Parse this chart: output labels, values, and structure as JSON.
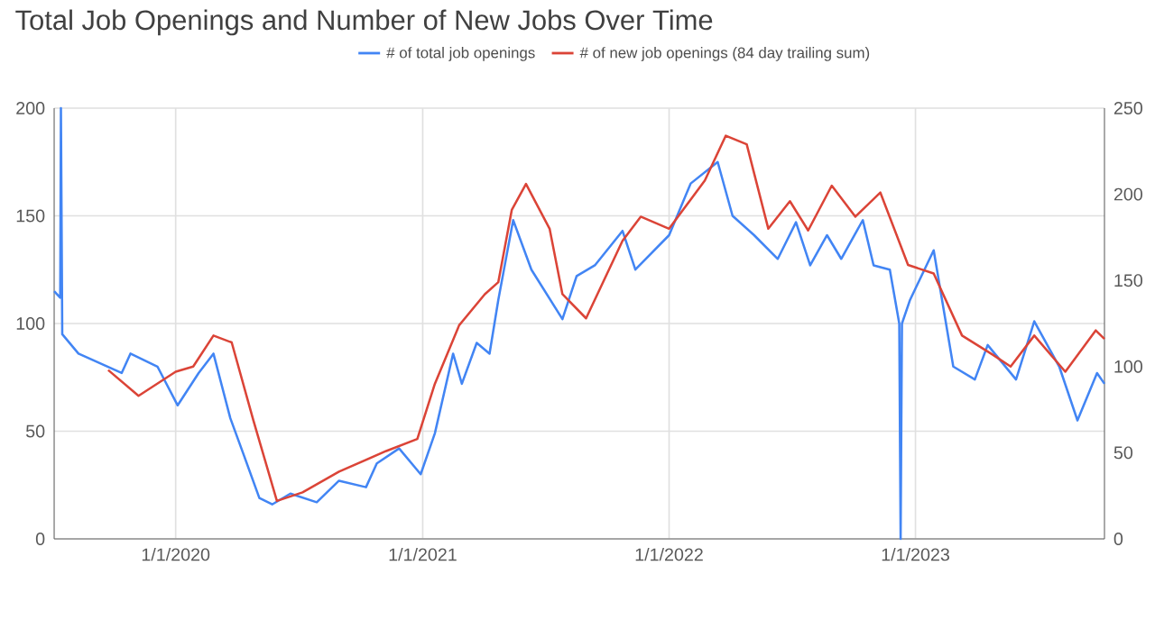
{
  "chart_data": {
    "type": "line",
    "title": "Total Job Openings and Number of New Jobs Over Time",
    "xlim": [
      "2019-07-05",
      "2023-10-08"
    ],
    "xticks": [
      {
        "value": "2020-01-01",
        "label": "1/1/2020"
      },
      {
        "value": "2021-01-01",
        "label": "1/1/2021"
      },
      {
        "value": "2022-01-01",
        "label": "1/1/2022"
      },
      {
        "value": "2023-01-01",
        "label": "1/1/2023"
      }
    ],
    "ylim": [
      0,
      200
    ],
    "yticks": [
      0,
      50,
      100,
      150,
      200
    ],
    "y2lim": [
      0,
      250
    ],
    "y2ticks": [
      0,
      50,
      100,
      150,
      200,
      250
    ],
    "grid": true,
    "legend": "top",
    "marker": "none",
    "line_style": "solid",
    "series": [
      {
        "name": "# of total job openings",
        "color": "#4285f4",
        "x": [
          "2019-07-05",
          "2019-07-14",
          "2019-07-15",
          "2019-07-17",
          "2019-08-10",
          "2019-10-13",
          "2019-10-26",
          "2019-12-05",
          "2020-01-04",
          "2020-02-04",
          "2020-02-26",
          "2020-03-22",
          "2020-04-12",
          "2020-05-04",
          "2020-05-23",
          "2020-06-19",
          "2020-07-28",
          "2020-08-30",
          "2020-10-09",
          "2020-10-25",
          "2020-11-27",
          "2020-12-29",
          "2021-01-19",
          "2021-02-15",
          "2021-02-28",
          "2021-03-22",
          "2021-04-10",
          "2021-04-23",
          "2021-05-15",
          "2021-06-11",
          "2021-07-27",
          "2021-08-17",
          "2021-09-13",
          "2021-10-24",
          "2021-11-12",
          "2022-01-01",
          "2022-02-02",
          "2022-03-14",
          "2022-04-05",
          "2022-05-07",
          "2022-06-11",
          "2022-07-08",
          "2022-07-29",
          "2022-08-23",
          "2022-09-13",
          "2022-10-15",
          "2022-10-31",
          "2022-11-24",
          "2022-12-08",
          "2022-12-10",
          "2022-12-12",
          "2022-12-24",
          "2023-01-28",
          "2023-02-26",
          "2023-03-30",
          "2023-04-18",
          "2023-05-30",
          "2023-06-26",
          "2023-08-02",
          "2023-08-29",
          "2023-09-27",
          "2023-10-08"
        ],
        "values": [
          115,
          112,
          200,
          95,
          86,
          77,
          86,
          80,
          62,
          77,
          86,
          56,
          38,
          19,
          16,
          21,
          17,
          27,
          24,
          35,
          42,
          30,
          49,
          86,
          72,
          91,
          86,
          111,
          148,
          125,
          102,
          122,
          127,
          143,
          125,
          141,
          165,
          175,
          150,
          141,
          130,
          147,
          127,
          141,
          130,
          148,
          127,
          125,
          100,
          0,
          100,
          111,
          134,
          80,
          74,
          90,
          74,
          101,
          80,
          55,
          77,
          72
        ]
      },
      {
        "name": "# of new job openings (84 day trailing sum)",
        "color": "#db4437",
        "axis": "y2",
        "x": [
          "2019-09-23",
          "2019-11-07",
          "2020-01-01",
          "2020-01-27",
          "2020-02-26",
          "2020-03-24",
          "2020-04-25",
          "2020-05-30",
          "2020-07-07",
          "2020-08-30",
          "2020-11-08",
          "2020-12-24",
          "2021-01-19",
          "2021-02-24",
          "2021-04-03",
          "2021-04-23",
          "2021-05-13",
          "2021-06-03",
          "2021-07-08",
          "2021-07-27",
          "2021-08-31",
          "2021-10-24",
          "2021-11-20",
          "2022-01-01",
          "2022-02-23",
          "2022-03-26",
          "2022-04-26",
          "2022-05-28",
          "2022-06-29",
          "2022-07-26",
          "2022-08-30",
          "2022-10-04",
          "2022-11-10",
          "2022-12-21",
          "2023-01-28",
          "2023-03-11",
          "2023-04-25",
          "2023-05-22",
          "2023-06-26",
          "2023-08-11",
          "2023-09-25",
          "2023-10-08"
        ],
        "values": [
          98,
          83,
          97,
          100,
          118,
          114,
          69,
          22,
          27,
          39,
          51,
          58,
          90,
          124,
          142,
          149,
          191,
          206,
          180,
          142,
          128,
          173,
          187,
          180,
          208,
          234,
          229,
          180,
          196,
          179,
          205,
          187,
          201,
          159,
          154,
          118,
          107,
          100,
          118,
          97,
          121,
          116
        ]
      }
    ]
  }
}
